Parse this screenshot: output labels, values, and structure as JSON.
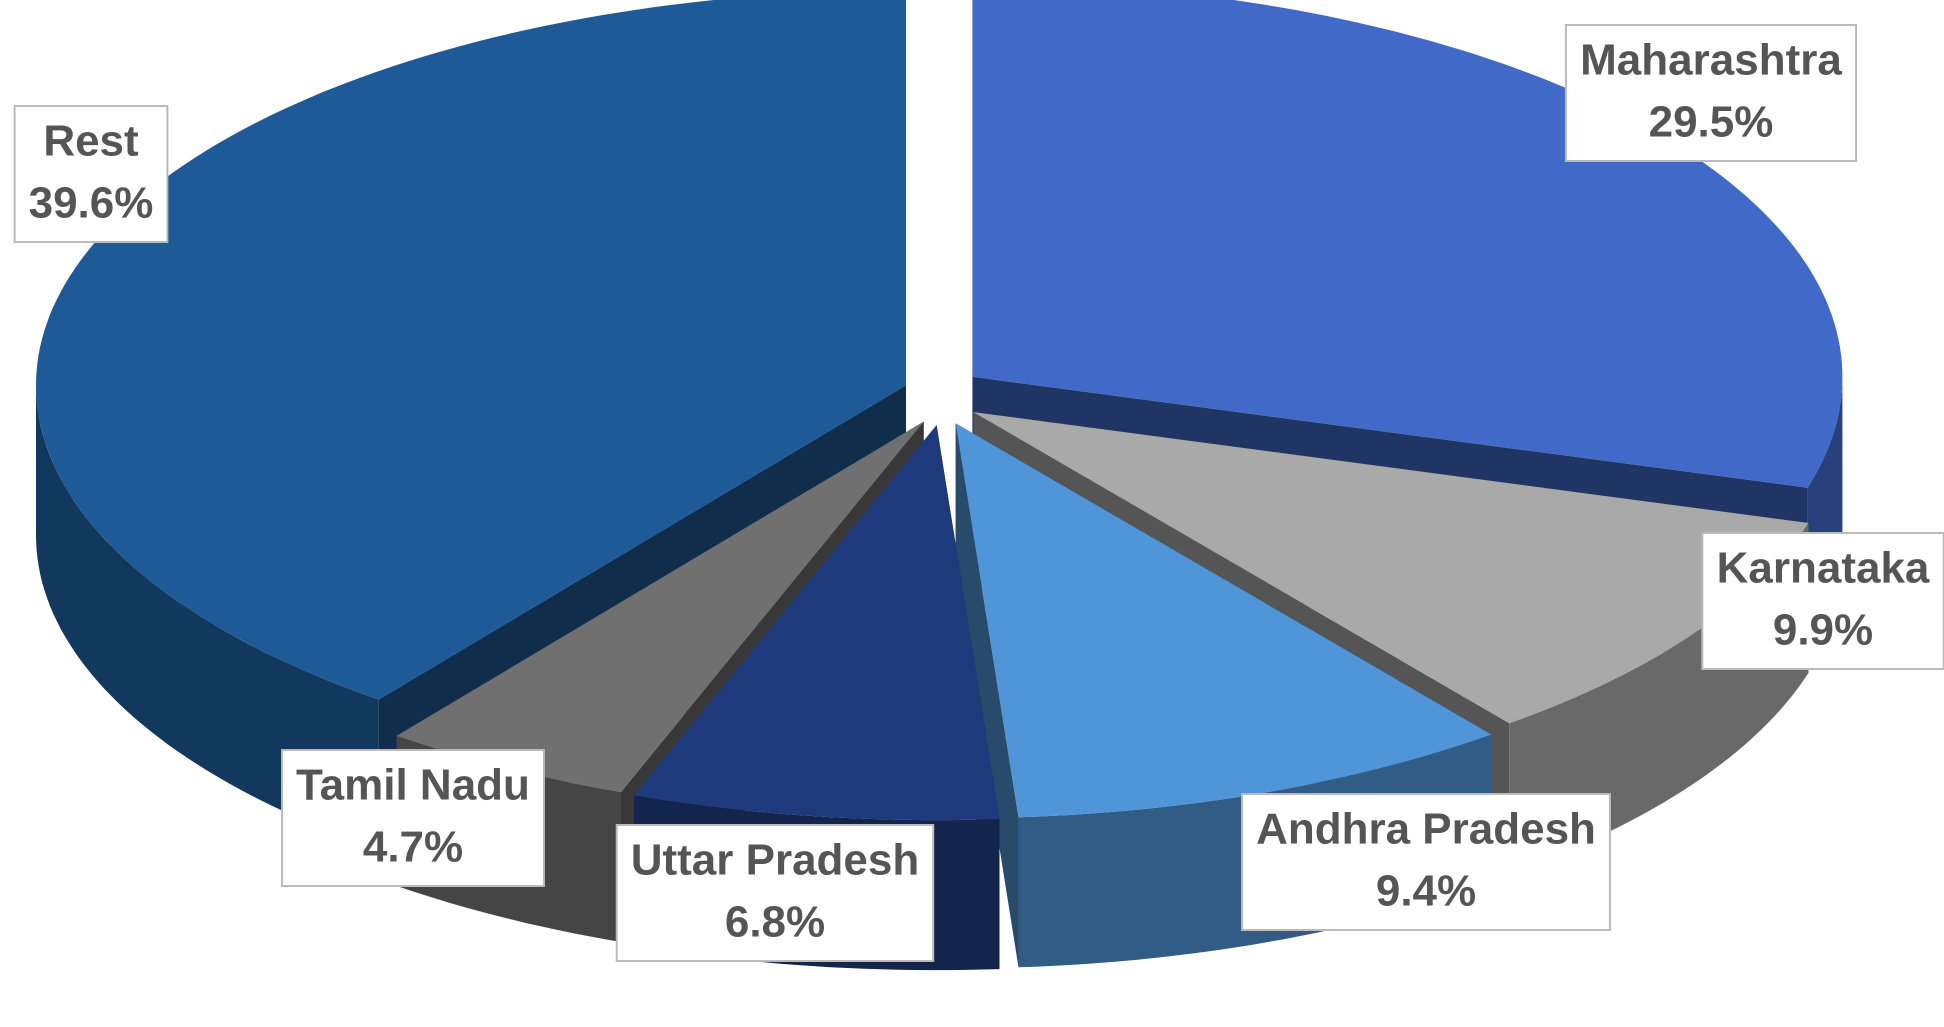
{
  "chart_data": {
    "type": "pie3d",
    "categories": [
      "Maharashtra",
      "Karnataka",
      "Andhra Pradesh",
      "Uttar Pradesh",
      "Tamil Nadu",
      "Rest"
    ],
    "values": [
      29.5,
      9.9,
      9.4,
      6.8,
      4.7,
      39.6
    ],
    "value_labels": [
      "29.5%",
      "9.9%",
      "9.4%",
      "6.8%",
      "4.7%",
      "39.6%"
    ],
    "colors": [
      "#4169c8",
      "#a9a9a9",
      "#4f95d8",
      "#1f3a7c",
      "#707070",
      "#1f5a98"
    ]
  }
}
